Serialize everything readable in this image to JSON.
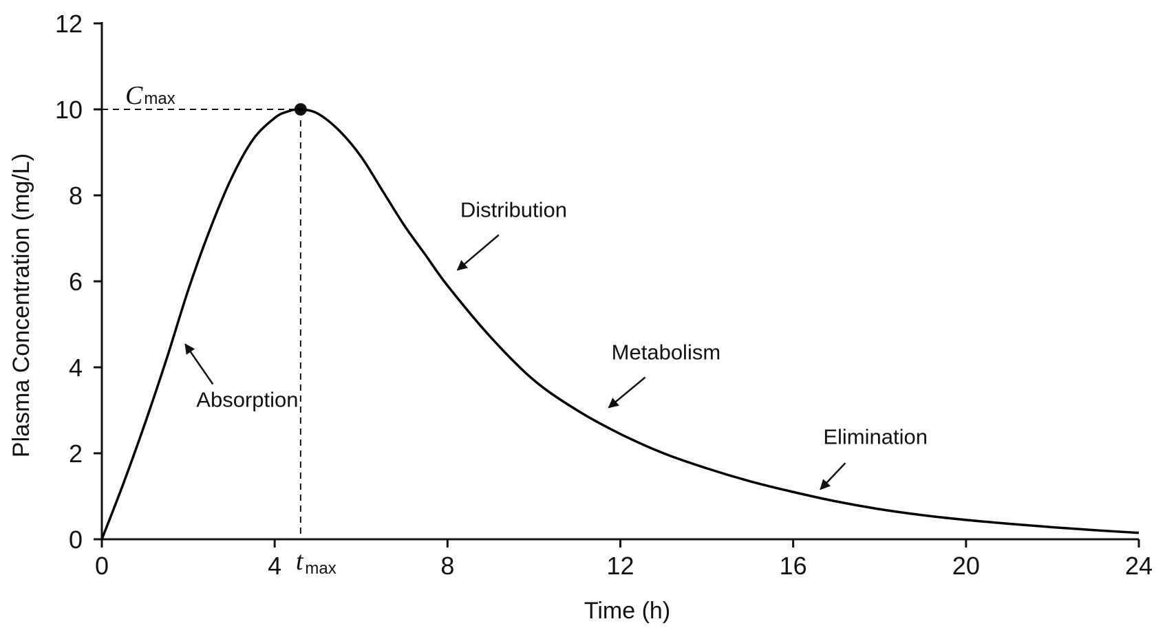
{
  "chart_data": {
    "type": "line",
    "title": "",
    "xlabel": "Time (h)",
    "ylabel": "Plasma Concentration (mg/L)",
    "xlim": [
      0,
      24
    ],
    "ylim": [
      0,
      12
    ],
    "xticks": [
      "0",
      "4",
      "8",
      "12",
      "16",
      "20",
      "24"
    ],
    "yticks": [
      "0",
      "2",
      "4",
      "6",
      "8",
      "10",
      "12"
    ],
    "grid": false,
    "legend": "none",
    "series": [
      {
        "x": [
          0,
          0.5,
          1,
          1.5,
          2,
          2.5,
          3,
          3.5,
          4,
          4.3,
          4.6,
          5,
          5.5,
          6,
          6.5,
          7,
          7.5,
          8,
          9,
          10,
          11,
          12,
          13,
          14,
          15,
          16,
          17,
          18,
          19,
          20,
          21,
          22,
          23,
          24
        ],
        "y": [
          0,
          1.3,
          2.7,
          4.2,
          5.8,
          7.2,
          8.4,
          9.3,
          9.8,
          9.95,
          10,
          9.9,
          9.5,
          8.9,
          8.1,
          7.3,
          6.6,
          5.9,
          4.7,
          3.7,
          3.0,
          2.45,
          2.0,
          1.65,
          1.35,
          1.1,
          0.88,
          0.7,
          0.56,
          0.45,
          0.36,
          0.28,
          0.21,
          0.15
        ],
        "color": "#000000"
      }
    ],
    "peak": {
      "x": 4.6,
      "y": 10,
      "symbol_c": "C",
      "sub_c": "max",
      "symbol_t": "t",
      "sub_t": "max"
    },
    "annotations": [
      {
        "text": "Absorption",
        "x": 1.9,
        "y": 4.6
      },
      {
        "text": "Distribution",
        "x": 8.2,
        "y": 6.2
      },
      {
        "text": "Metabolism",
        "x": 11.7,
        "y": 3.0
      },
      {
        "text": "Elimination",
        "x": 16.6,
        "y": 1.1
      }
    ]
  }
}
